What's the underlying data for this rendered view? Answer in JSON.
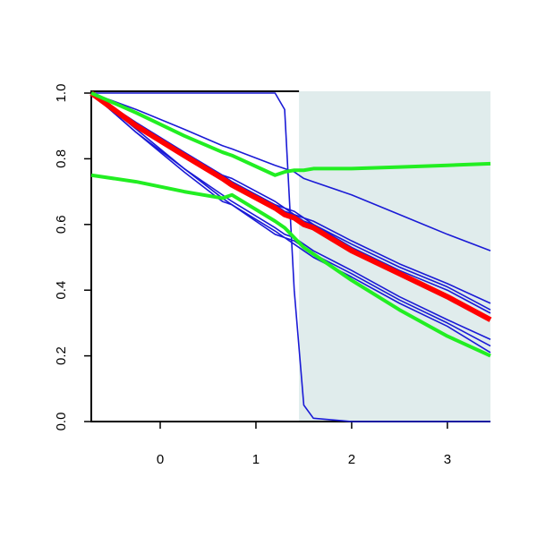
{
  "chart_data": {
    "type": "line",
    "x": [
      -0.72,
      -0.25,
      0.25,
      0.65,
      0.75,
      1.2,
      1.3,
      1.4,
      1.5,
      1.6,
      2,
      2.5,
      3,
      3.45
    ],
    "xlim": [
      -0.72,
      3.45
    ],
    "xticks": [
      0,
      1,
      2,
      3
    ],
    "ylim": [
      0,
      1
    ],
    "yticks": [
      {
        "value": 0,
        "label": "0.0"
      },
      {
        "value": 0.2,
        "label": "0.2"
      },
      {
        "value": 0.4,
        "label": "0.4"
      },
      {
        "value": 0.6,
        "label": "0.6"
      },
      {
        "value": 0.8,
        "label": "0.8"
      },
      {
        "value": 1,
        "label": "1.0"
      }
    ],
    "shade_xlim": [
      1.45,
      3.45
    ],
    "shade_color": "#e0ecec",
    "series": [
      {
        "color": "#1a1ad6",
        "line_width": 1.6,
        "values": [
          1,
          1,
          1,
          1,
          1,
          1,
          0.95,
          0.4,
          0.05,
          0.01,
          0,
          0,
          0,
          0
        ]
      },
      {
        "color": "#1a1ad6",
        "line_width": 1.6,
        "values": [
          1,
          0.95,
          0.89,
          0.84,
          0.83,
          0.78,
          0.77,
          0.76,
          0.74,
          0.73,
          0.69,
          0.63,
          0.57,
          0.52
        ]
      },
      {
        "color": "#1a1ad6",
        "line_width": 1.6,
        "values": [
          1,
          0.91,
          0.82,
          0.75,
          0.74,
          0.67,
          0.65,
          0.64,
          0.62,
          0.61,
          0.55,
          0.48,
          0.42,
          0.36
        ]
      },
      {
        "color": "#1a1ad6",
        "line_width": 1.6,
        "values": [
          1,
          0.91,
          0.82,
          0.75,
          0.73,
          0.66,
          0.65,
          0.63,
          0.62,
          0.6,
          0.54,
          0.47,
          0.41,
          0.34
        ]
      },
      {
        "color": "#1a1ad6",
        "line_width": 1.6,
        "values": [
          1,
          0.9,
          0.81,
          0.74,
          0.73,
          0.66,
          0.64,
          0.63,
          0.61,
          0.6,
          0.53,
          0.46,
          0.4,
          0.33
        ]
      },
      {
        "color": "#1a1ad6",
        "line_width": 1.6,
        "values": [
          1,
          0.89,
          0.77,
          0.69,
          0.67,
          0.59,
          0.57,
          0.56,
          0.54,
          0.52,
          0.46,
          0.38,
          0.31,
          0.25
        ]
      },
      {
        "color": "#1a1ad6",
        "line_width": 1.6,
        "values": [
          1,
          0.88,
          0.77,
          0.68,
          0.66,
          0.58,
          0.56,
          0.55,
          0.53,
          0.51,
          0.45,
          0.37,
          0.3,
          0.23
        ]
      },
      {
        "color": "#1a1ad6",
        "line_width": 1.6,
        "values": [
          1,
          0.88,
          0.76,
          0.67,
          0.66,
          0.57,
          0.56,
          0.54,
          0.52,
          0.5,
          0.44,
          0.36,
          0.29,
          0.21
        ]
      },
      {
        "color": "#ff0000",
        "line_width": 6,
        "values": [
          1,
          0.9,
          0.81,
          0.74,
          0.72,
          0.65,
          0.63,
          0.62,
          0.6,
          0.59,
          0.52,
          0.45,
          0.38,
          0.31
        ]
      },
      {
        "color": "#22ee22",
        "line_width": 4,
        "values": [
          1,
          0.94,
          0.87,
          0.82,
          0.81,
          0.75,
          0.76,
          0.765,
          0.765,
          0.77,
          0.77,
          0.775,
          0.78,
          0.785
        ]
      },
      {
        "color": "#22ee22",
        "line_width": 4,
        "values": [
          0.75,
          0.73,
          0.7,
          0.68,
          0.69,
          0.61,
          0.59,
          0.56,
          0.53,
          0.51,
          0.43,
          0.34,
          0.26,
          0.2
        ]
      }
    ]
  }
}
